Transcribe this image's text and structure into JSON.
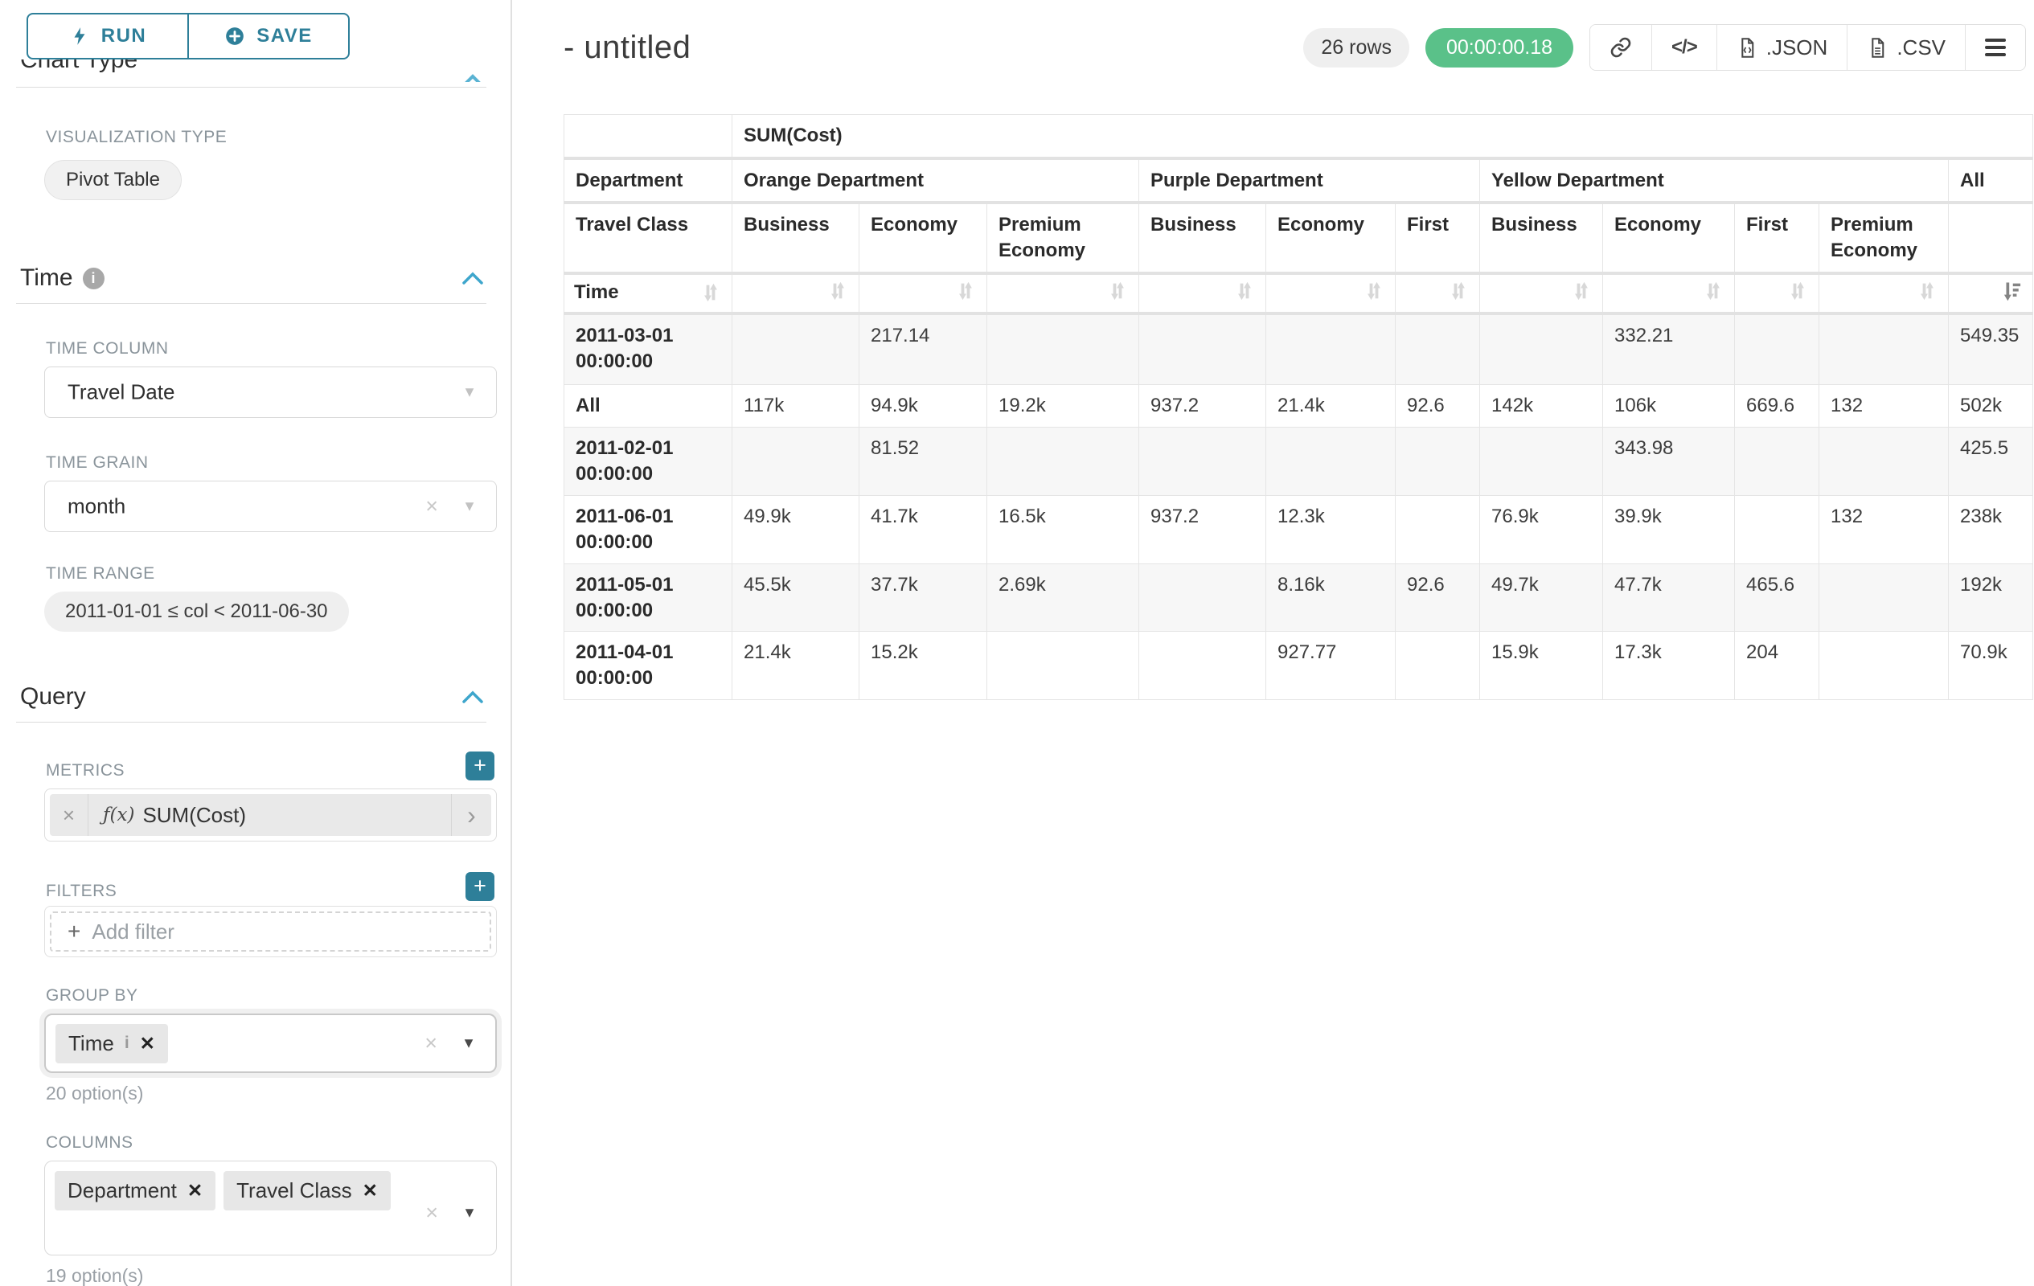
{
  "colors": {
    "accent_teal": "#2e7f99",
    "chevron_blue": "#3ea6cc",
    "success_green": "#5ac189"
  },
  "panel": {
    "run_label": "RUN",
    "save_label": "SAVE",
    "clipped_section_title": "Chart Type",
    "viz_type_label": "VISUALIZATION TYPE",
    "viz_type_value": "Pivot Table",
    "time_section_title": "Time",
    "time_column_label": "TIME COLUMN",
    "time_column_value": "Travel Date",
    "time_grain_label": "TIME GRAIN",
    "time_grain_value": "month",
    "time_range_label": "TIME RANGE",
    "time_range_value": "2011-01-01 ≤ col < 2011-06-30",
    "query_section_title": "Query",
    "metrics_label": "METRICS",
    "metric_fx": "ƒ(x)",
    "metric_value": "SUM(Cost)",
    "filters_label": "FILTERS",
    "add_filter_label": "Add filter",
    "group_by_label": "GROUP BY",
    "group_by_tags": [
      "Time"
    ],
    "group_by_options": "20 option(s)",
    "columns_label": "COLUMNS",
    "columns_tags": [
      "Department",
      "Travel Class"
    ],
    "columns_options": "19 option(s)"
  },
  "header": {
    "title": "- untitled",
    "rows_badge": "26 rows",
    "timer_badge": "00:00:00.18",
    "json_label": ".JSON",
    "csv_label": ".CSV"
  },
  "pivot": {
    "metric_header": "SUM(Cost)",
    "row_header_1": "Department",
    "row_header_2": "Travel Class",
    "row_header_3": "Time",
    "column_groups": [
      {
        "label": "Orange Department",
        "children": [
          "Business",
          "Economy",
          "Premium Economy"
        ]
      },
      {
        "label": "Purple Department",
        "children": [
          "Business",
          "Economy",
          "First"
        ]
      },
      {
        "label": "Yellow Department",
        "children": [
          "Business",
          "Economy",
          "First",
          "Premium Economy"
        ]
      },
      {
        "label": "All",
        "children": [
          ""
        ]
      }
    ],
    "rows": [
      {
        "label": "2011-03-01 00:00:00",
        "values": [
          "",
          "217.14",
          "",
          "",
          "",
          "",
          "",
          "332.21",
          "",
          "",
          "549.35"
        ]
      },
      {
        "label": "All",
        "values": [
          "117k",
          "94.9k",
          "19.2k",
          "937.2",
          "21.4k",
          "92.6",
          "142k",
          "106k",
          "669.6",
          "132",
          "502k"
        ]
      },
      {
        "label": "2011-02-01 00:00:00",
        "values": [
          "",
          "81.52",
          "",
          "",
          "",
          "",
          "",
          "343.98",
          "",
          "",
          "425.5"
        ]
      },
      {
        "label": "2011-06-01 00:00:00",
        "values": [
          "49.9k",
          "41.7k",
          "16.5k",
          "937.2",
          "12.3k",
          "",
          "76.9k",
          "39.9k",
          "",
          "132",
          "238k"
        ]
      },
      {
        "label": "2011-05-01 00:00:00",
        "values": [
          "45.5k",
          "37.7k",
          "2.69k",
          "",
          "8.16k",
          "92.6",
          "49.7k",
          "47.7k",
          "465.6",
          "",
          "192k"
        ]
      },
      {
        "label": "2011-04-01 00:00:00",
        "values": [
          "21.4k",
          "15.2k",
          "",
          "",
          "927.77",
          "",
          "15.9k",
          "17.3k",
          "204",
          "",
          "70.9k"
        ]
      }
    ]
  }
}
